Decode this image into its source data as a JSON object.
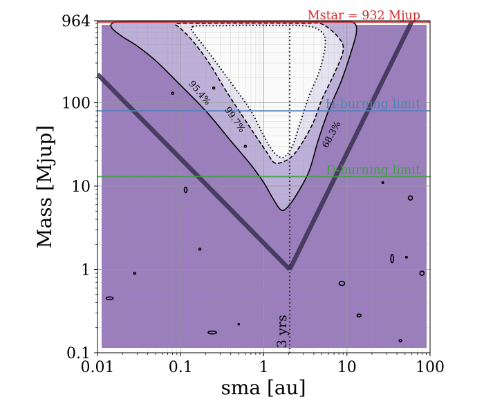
{
  "chart_data": {
    "type": "contour",
    "title": "",
    "xlabel": "sma [au]",
    "ylabel": "Mass [Mjup]",
    "x_scale": "log",
    "y_scale": "log",
    "xlim": [
      0.01,
      100
    ],
    "ylim": [
      0.1,
      964
    ],
    "x_ticks": [
      {
        "value": 0.01,
        "label": "0.01"
      },
      {
        "value": 0.1,
        "label": "0.1"
      },
      {
        "value": 1,
        "label": "1"
      },
      {
        "value": 10,
        "label": "10"
      },
      {
        "value": 100,
        "label": "100"
      }
    ],
    "y_ticks": [
      {
        "value": 0.1,
        "label": "0.1"
      },
      {
        "value": 1,
        "label": "1"
      },
      {
        "value": 10,
        "label": "10"
      },
      {
        "value": 100,
        "label": "100"
      },
      {
        "value": 964,
        "label": "964"
      }
    ],
    "grid": true,
    "colors": {
      "background": "#9b7fbd",
      "band_95": "#bdb0d8",
      "band_99": "#e6e3f1",
      "band_inner": "#fafafa",
      "mstar": "#d62728",
      "h_burning": "#4f83bd",
      "d_burning": "#3ca03c",
      "v_line": "#3a3050"
    },
    "hlines": [
      {
        "id": "mstar",
        "value": 932,
        "label": "Mstar = 932 Mjup",
        "color": "#d62728"
      },
      {
        "id": "h-burning",
        "value": 80,
        "label": "H-burning limit",
        "color": "#4f83bd"
      },
      {
        "id": "d-burning",
        "value": 13,
        "label": "D-burning limit",
        "color": "#3ca03c"
      }
    ],
    "period_line": {
      "sma": 2.05,
      "label": "3 yrs"
    },
    "sensitivity_v": {
      "left": [
        [
          0.01,
          220
        ],
        [
          2.05,
          1
        ]
      ],
      "right": [
        [
          2.05,
          1
        ],
        [
          68,
          1200
        ]
      ]
    },
    "contours": [
      {
        "id": "contour-68",
        "label": "68.3%",
        "style": "dashed",
        "label_at": [
          7.0,
          40
        ],
        "label_rotation": -62,
        "points": [
          [
            0.09,
            890
          ],
          [
            0.2,
            900
          ],
          [
            0.5,
            905
          ],
          [
            1,
            905
          ],
          [
            3,
            900
          ],
          [
            5,
            880
          ],
          [
            8,
            600
          ],
          [
            9,
            420
          ],
          [
            7,
            220
          ],
          [
            5,
            110
          ],
          [
            4,
            60
          ],
          [
            3,
            35
          ],
          [
            2.3,
            24
          ],
          [
            1.8,
            20
          ],
          [
            1.35,
            19
          ],
          [
            1.1,
            25
          ],
          [
            0.8,
            40
          ],
          [
            0.55,
            70
          ],
          [
            0.35,
            140
          ],
          [
            0.22,
            300
          ],
          [
            0.14,
            550
          ],
          [
            0.1,
            780
          ]
        ]
      },
      {
        "id": "contour-99",
        "label": "99.7%",
        "style": "dotted",
        "label_at": [
          0.42,
          60
        ],
        "label_rotation": 55,
        "points": [
          [
            0.14,
            820
          ],
          [
            0.3,
            840
          ],
          [
            0.7,
            850
          ],
          [
            1.5,
            845
          ],
          [
            3,
            840
          ],
          [
            4.5,
            760
          ],
          [
            5.5,
            560
          ],
          [
            4.8,
            260
          ],
          [
            3.5,
            120
          ],
          [
            2.7,
            55
          ],
          [
            2.2,
            30
          ],
          [
            1.7,
            22
          ],
          [
            1.3,
            26
          ],
          [
            1.0,
            40
          ],
          [
            0.7,
            80
          ],
          [
            0.45,
            150
          ],
          [
            0.3,
            260
          ],
          [
            0.2,
            450
          ],
          [
            0.15,
            650
          ]
        ]
      },
      {
        "id": "contour-95",
        "label": "95.4%",
        "style": "solid",
        "label_at": [
          0.16,
          125
        ],
        "label_rotation": 50,
        "points": [
          [
            0.015,
            900
          ],
          [
            0.02,
            940
          ],
          [
            0.08,
            945
          ],
          [
            0.5,
            950
          ],
          [
            2,
            945
          ],
          [
            8,
            940
          ],
          [
            12,
            920
          ],
          [
            13,
            700
          ],
          [
            11,
            380
          ],
          [
            8.5,
            180
          ],
          [
            6,
            80
          ],
          [
            4.5,
            35
          ],
          [
            3.5,
            15
          ],
          [
            2.5,
            8
          ],
          [
            1.9,
            5.5
          ],
          [
            1.6,
            5.2
          ],
          [
            1.3,
            7
          ],
          [
            1.0,
            11
          ],
          [
            0.7,
            18
          ],
          [
            0.4,
            35
          ],
          [
            0.2,
            80
          ],
          [
            0.09,
            180
          ],
          [
            0.05,
            320
          ],
          [
            0.03,
            480
          ],
          [
            0.02,
            620
          ],
          [
            0.015,
            780
          ]
        ]
      }
    ],
    "islands": [
      {
        "center": [
          0.115,
          9
        ],
        "rx": 2,
        "ry": 4
      },
      {
        "center": [
          0.014,
          0.45
        ],
        "rx": 5,
        "ry": 2
      },
      {
        "center": [
          0.24,
          0.175
        ],
        "rx": 6,
        "ry": 2
      },
      {
        "center": [
          8.7,
          0.68
        ],
        "rx": 4,
        "ry": 3
      },
      {
        "center": [
          14,
          0.28
        ],
        "rx": 3,
        "ry": 2
      },
      {
        "center": [
          35,
          1.35
        ],
        "rx": 2,
        "ry": 6
      },
      {
        "center": [
          58,
          7.2
        ],
        "rx": 3,
        "ry": 3
      },
      {
        "center": [
          80,
          0.9
        ],
        "rx": 3,
        "ry": 3
      },
      {
        "center": [
          44,
          0.14
        ],
        "rx": 2,
        "ry": 1.5
      },
      {
        "center": [
          0.17,
          1.75
        ],
        "rx": 1.5,
        "ry": 1.5
      },
      {
        "center": [
          0.028,
          0.9
        ],
        "rx": 1.5,
        "ry": 1.5
      },
      {
        "center": [
          0.08,
          130
        ],
        "rx": 1.5,
        "ry": 1.5
      },
      {
        "center": [
          0.25,
          150
        ],
        "rx": 1.5,
        "ry": 1.5
      },
      {
        "center": [
          0.6,
          30
        ],
        "rx": 1.5,
        "ry": 1.5
      },
      {
        "center": [
          27,
          11
        ],
        "rx": 1.2,
        "ry": 1.2
      },
      {
        "center": [
          52,
          1.4
        ],
        "rx": 1.2,
        "ry": 1.2
      },
      {
        "center": [
          0.5,
          0.22
        ],
        "rx": 1.0,
        "ry": 1.0
      }
    ]
  }
}
